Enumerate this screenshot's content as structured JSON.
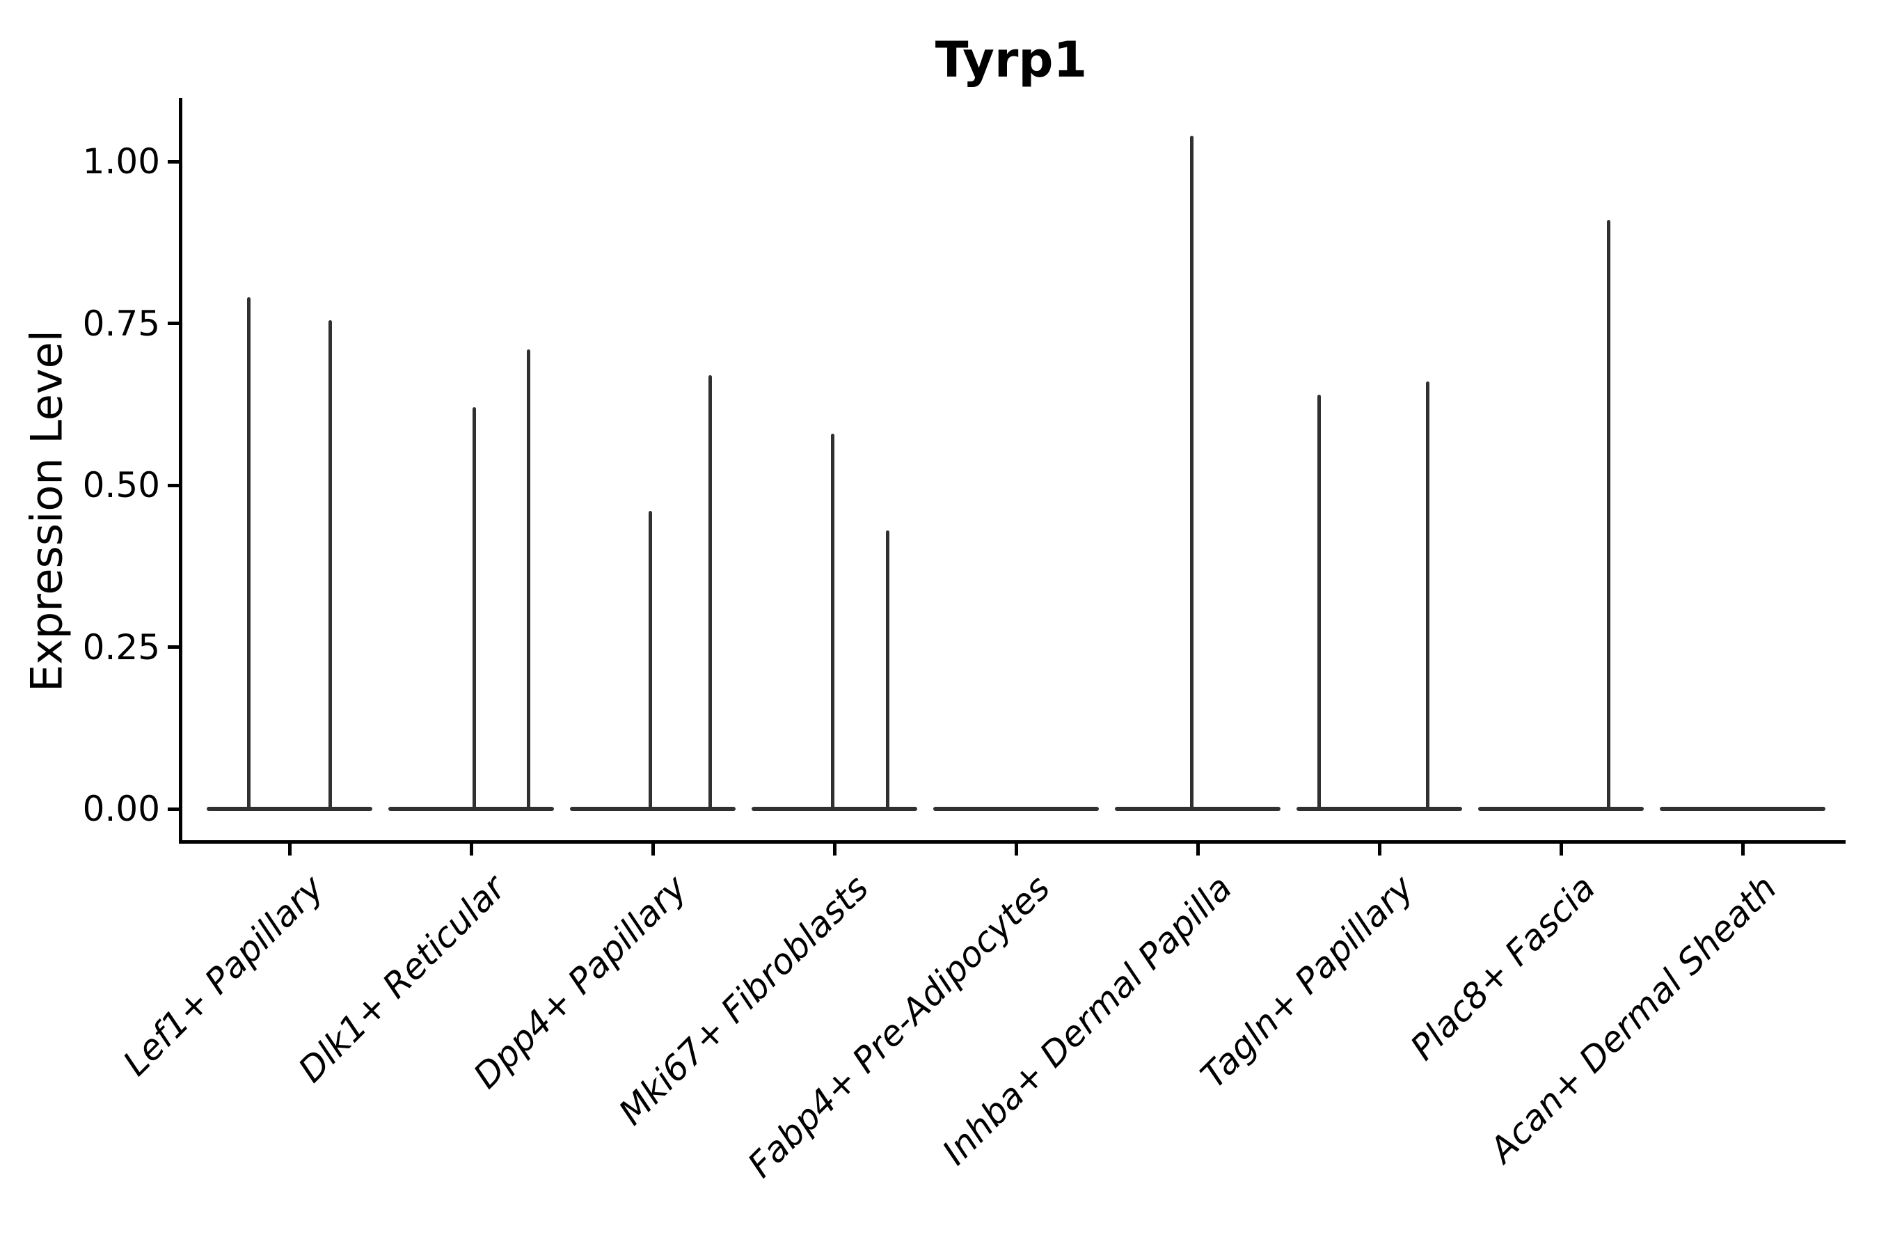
{
  "title": "Tyrp1",
  "chart_data": {
    "type": "violin",
    "title": "Tyrp1",
    "xlabel": "",
    "ylabel": "Expression Level",
    "ylim": [
      -0.05,
      1.09
    ],
    "grid": false,
    "legend": "none",
    "y_ticks": [
      "1.00",
      "0.75",
      "0.50",
      "0.25",
      "0.00"
    ],
    "categories": [
      "Lef1+ Papillary",
      "Dlk1+ Reticular",
      "Dpp4+ Papillary",
      "Mki67+ Fibroblasts",
      "Fabp4+ Pre-Adipocytes",
      "Inhba+ Dermal Papilla",
      "Tagln+ Papillary",
      "Plac8+ Fascia",
      "Acan+ Dermal Sheath"
    ],
    "violins": [
      {
        "category": "Lef1+ Papillary",
        "peaks": [
          {
            "dx": -59,
            "value": 0.79
          },
          {
            "dx": 58,
            "value": 0.755
          }
        ]
      },
      {
        "category": "Dlk1+ Reticular",
        "peaks": [
          {
            "dx": 4,
            "value": 0.62
          },
          {
            "dx": 82,
            "value": 0.71
          }
        ]
      },
      {
        "category": "Dpp4+ Papillary",
        "peaks": [
          {
            "dx": -4,
            "value": 0.46
          },
          {
            "dx": 82,
            "value": 0.67
          }
        ]
      },
      {
        "category": "Mki67+ Fibroblasts",
        "peaks": [
          {
            "dx": -3,
            "value": 0.58
          },
          {
            "dx": 76,
            "value": 0.43
          }
        ]
      },
      {
        "category": "Fabp4+ Pre-Adipocytes",
        "peaks": []
      },
      {
        "category": "Inhba+ Dermal Papilla",
        "peaks": [
          {
            "dx": -9,
            "value": 1.04
          }
        ]
      },
      {
        "category": "Tagln+ Papillary",
        "peaks": [
          {
            "dx": -87,
            "value": 0.64
          },
          {
            "dx": 69,
            "value": 0.66
          }
        ]
      },
      {
        "category": "Plac8+ Fascia",
        "peaks": [
          {
            "dx": 68,
            "value": 0.91
          }
        ]
      },
      {
        "category": "Acan+ Dermal Sheath",
        "peaks": []
      }
    ],
    "colors": {
      "violin": "#303030",
      "axis": "#000000",
      "text": "#000000",
      "background": "#ffffff"
    }
  }
}
